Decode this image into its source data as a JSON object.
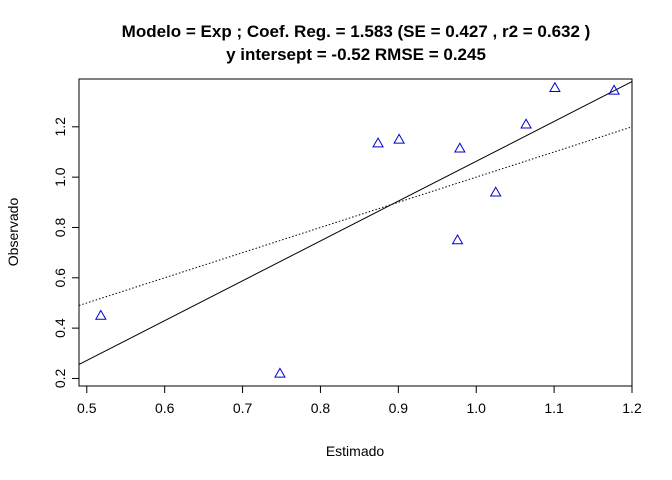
{
  "chart_data": {
    "type": "scatter",
    "title_line1": "Modelo =  Exp ; Coef. Reg. =  1.583  (SE =  0.427 , r2 =  0.632 )",
    "title_line2": "y intersept =  -0.52 RMSE =  0.245",
    "xlabel": "Estimado",
    "ylabel": "Observado",
    "xlim": [
      0.49,
      1.2
    ],
    "ylim": [
      0.17,
      1.39
    ],
    "xticks": [
      "0.5",
      "0.6",
      "0.7",
      "0.8",
      "0.9",
      "1.0",
      "1.1",
      "1.2"
    ],
    "yticks": [
      "0.2",
      "0.4",
      "0.6",
      "0.8",
      "1.0",
      "1.2"
    ],
    "marker": "triangle-open",
    "marker_color": "#0000cc",
    "points": [
      {
        "x": 0.518,
        "y": 0.45
      },
      {
        "x": 0.748,
        "y": 0.22
      },
      {
        "x": 0.874,
        "y": 1.135
      },
      {
        "x": 0.901,
        "y": 1.15
      },
      {
        "x": 0.976,
        "y": 0.75
      },
      {
        "x": 0.979,
        "y": 1.115
      },
      {
        "x": 1.025,
        "y": 0.94
      },
      {
        "x": 1.064,
        "y": 1.21
      },
      {
        "x": 1.101,
        "y": 1.355
      },
      {
        "x": 1.177,
        "y": 1.345
      }
    ],
    "lines": [
      {
        "style": "solid",
        "intercept": -0.52,
        "slope": 1.583
      },
      {
        "style": "dotted",
        "intercept": 0.0,
        "slope": 1.0
      }
    ],
    "grid": false,
    "legend": "none"
  }
}
